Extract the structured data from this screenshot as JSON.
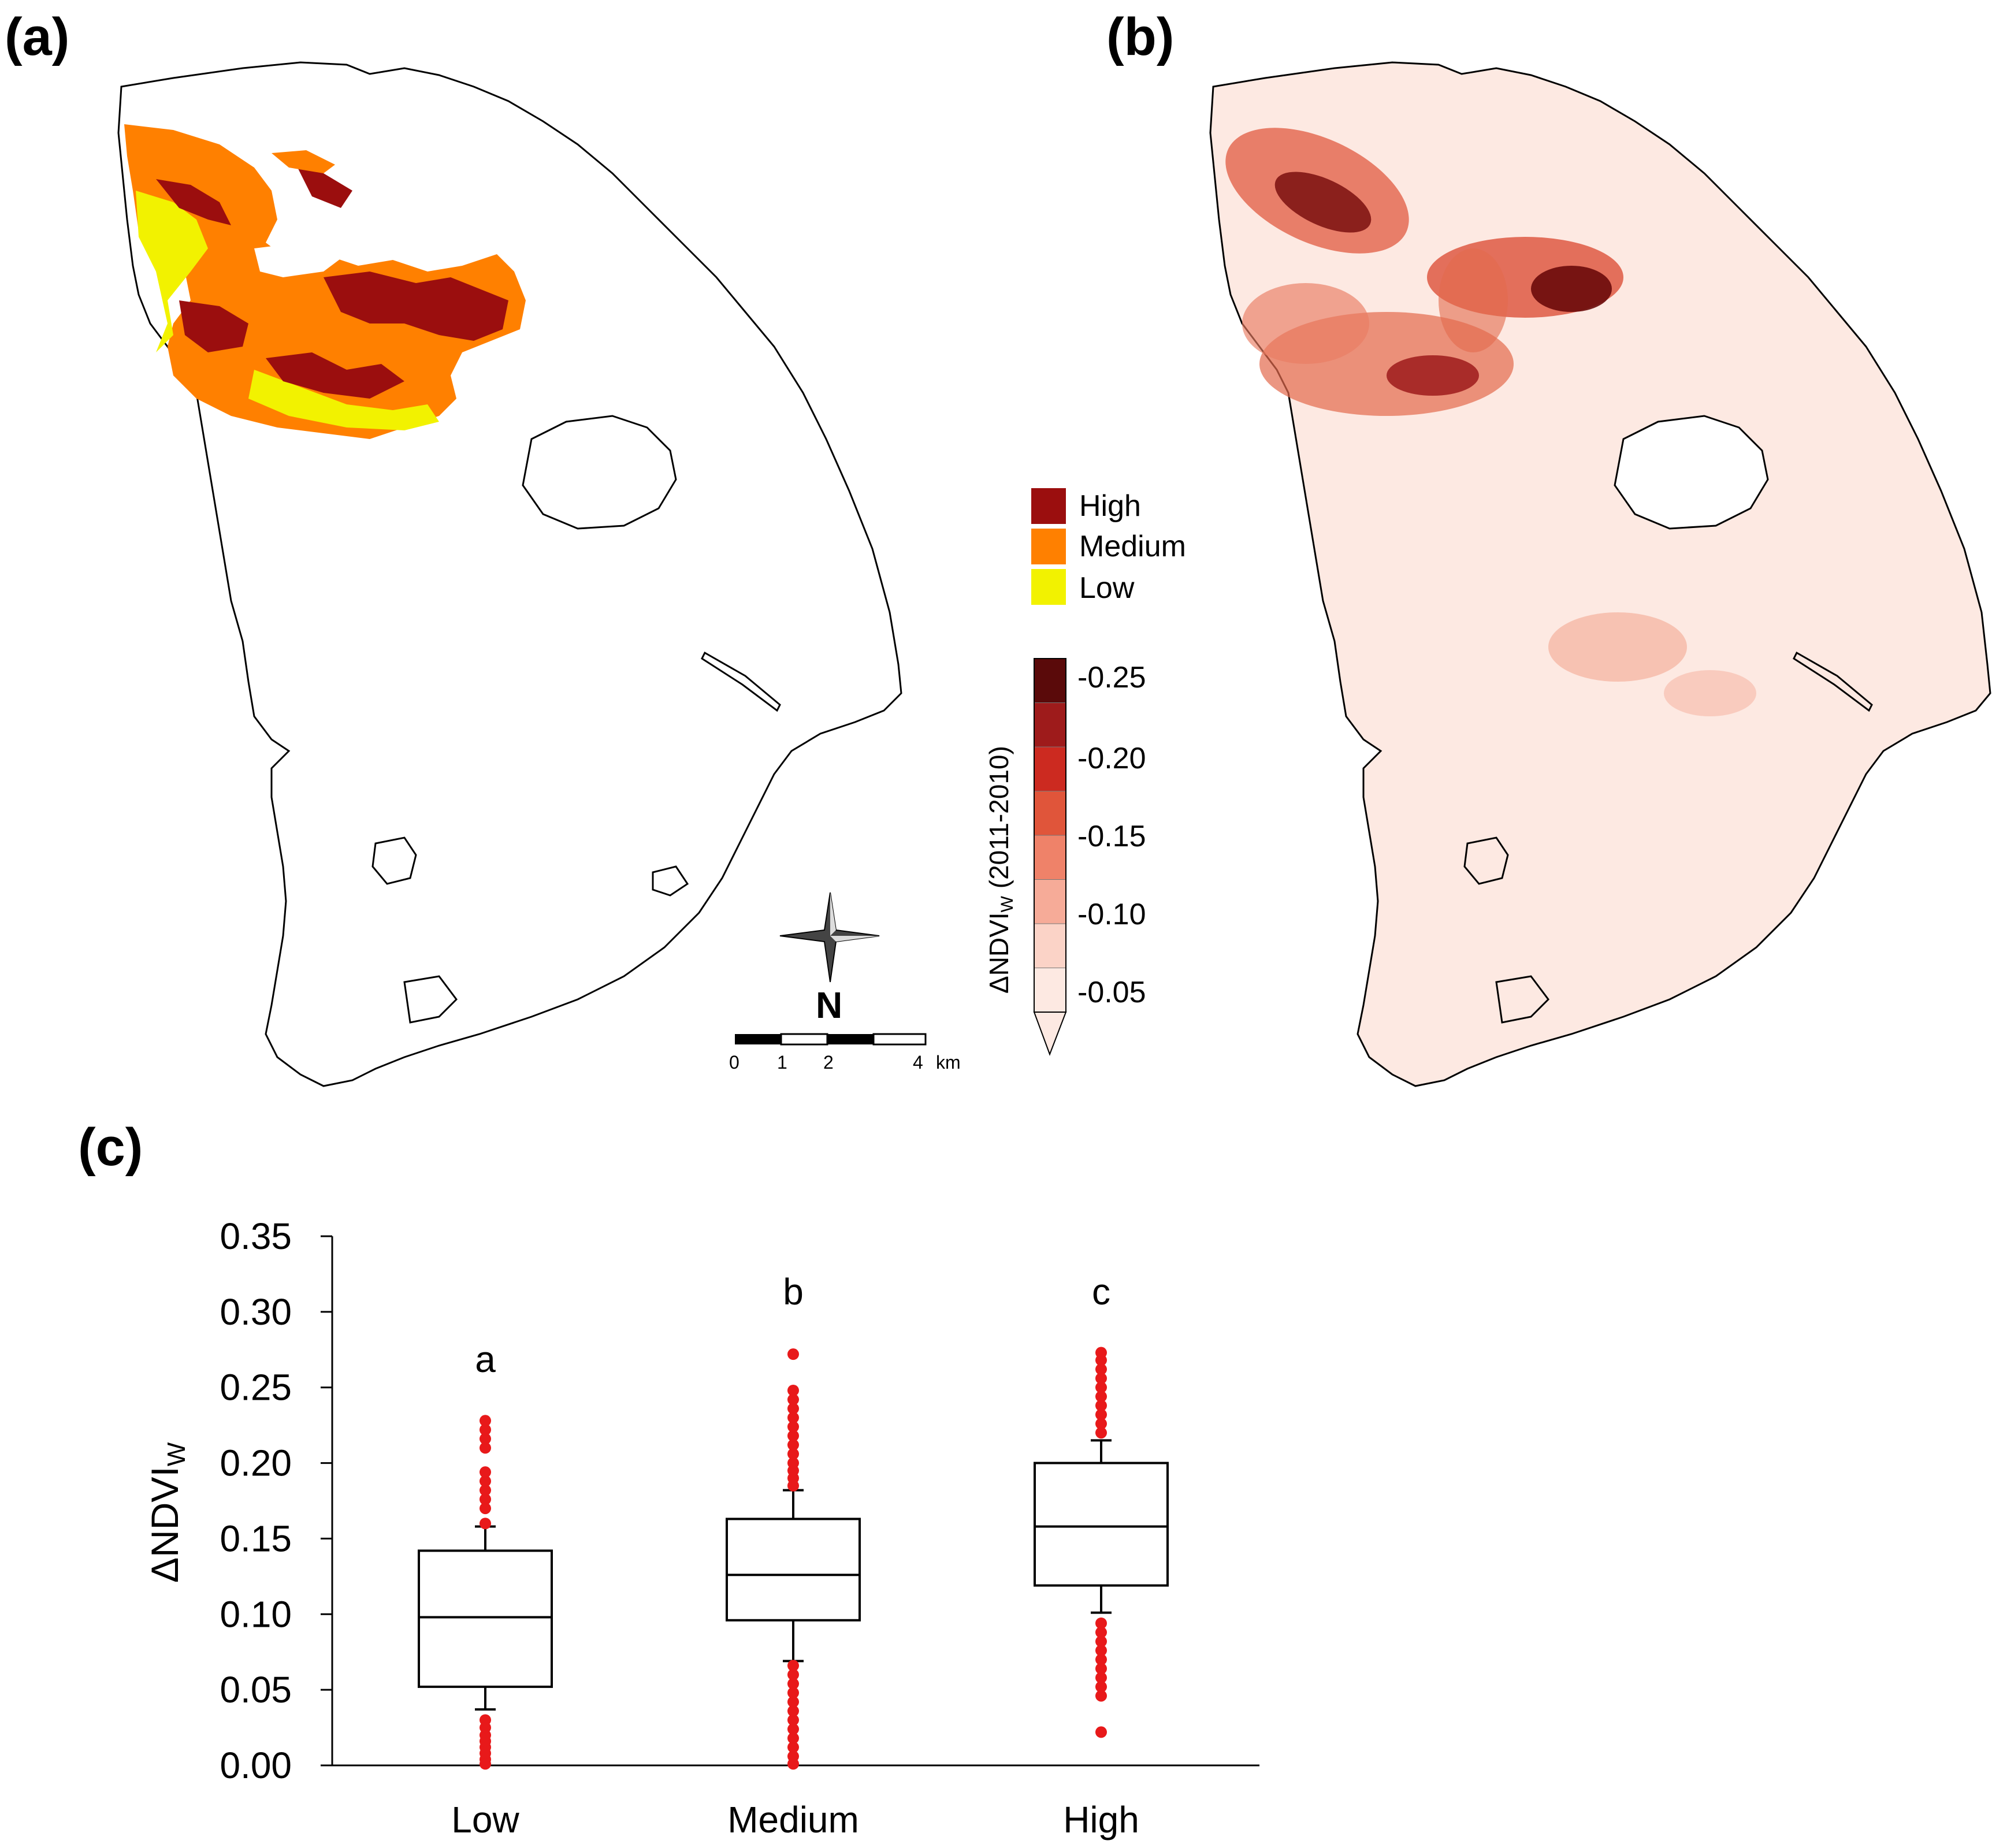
{
  "panels": {
    "a": "(a)",
    "b": "(b)",
    "c": "(c)"
  },
  "severity_legend": {
    "items": [
      {
        "label": "High",
        "color": "#9b0e0e"
      },
      {
        "label": "Medium",
        "color": "#ff8000"
      },
      {
        "label": "Low",
        "color": "#f2f200"
      }
    ]
  },
  "colorbar": {
    "title": "ΔNDVI",
    "title_sub": "W",
    "title_suffix": " (2011-2010)",
    "ticks": [
      "-0.25",
      "-0.20",
      "-0.15",
      "-0.10",
      "-0.05"
    ],
    "colors": [
      "#5a0a0a",
      "#9e1b1b",
      "#cc2a20",
      "#e0553a",
      "#ef8269",
      "#f6ab98",
      "#fbd3c7",
      "#fde9e2"
    ]
  },
  "compass": {
    "label": "N"
  },
  "scalebar": {
    "ticks": [
      "0",
      "1",
      "2",
      "4"
    ],
    "unit": "km"
  },
  "chart_data": {
    "type": "box",
    "categories": [
      "Low",
      "Medium",
      "High"
    ],
    "ylabel": "ΔNDVI",
    "ylabel_sub": "W",
    "ylim": [
      0,
      0.35
    ],
    "yticks": [
      "0.00",
      "0.05",
      "0.10",
      "0.15",
      "0.20",
      "0.25",
      "0.30",
      "0.35"
    ],
    "boxes": [
      {
        "name": "Low",
        "q1": 0.052,
        "median": 0.098,
        "q3": 0.142,
        "whisker_low": 0.037,
        "whisker_high": 0.158,
        "letter": "a"
      },
      {
        "name": "Medium",
        "q1": 0.096,
        "median": 0.126,
        "q3": 0.163,
        "whisker_low": 0.069,
        "whisker_high": 0.182,
        "letter": "b"
      },
      {
        "name": "High",
        "q1": 0.119,
        "median": 0.158,
        "q3": 0.2,
        "whisker_low": 0.101,
        "whisker_high": 0.215,
        "letter": "c"
      }
    ],
    "outliers": [
      [
        0.001,
        0.004,
        0.008,
        0.012,
        0.016,
        0.02,
        0.025,
        0.03,
        0.16,
        0.17,
        0.176,
        0.182,
        0.188,
        0.194,
        0.21,
        0.216,
        0.222,
        0.228
      ],
      [
        0.001,
        0.006,
        0.012,
        0.018,
        0.024,
        0.03,
        0.036,
        0.042,
        0.048,
        0.054,
        0.06,
        0.066,
        0.185,
        0.19,
        0.195,
        0.2,
        0.206,
        0.212,
        0.218,
        0.224,
        0.23,
        0.236,
        0.242,
        0.248,
        0.272
      ],
      [
        0.022,
        0.046,
        0.052,
        0.058,
        0.064,
        0.07,
        0.076,
        0.082,
        0.088,
        0.094,
        0.22,
        0.226,
        0.232,
        0.238,
        0.244,
        0.25,
        0.256,
        0.262,
        0.268,
        0.273
      ]
    ],
    "outlier_color": "#e8191a"
  }
}
